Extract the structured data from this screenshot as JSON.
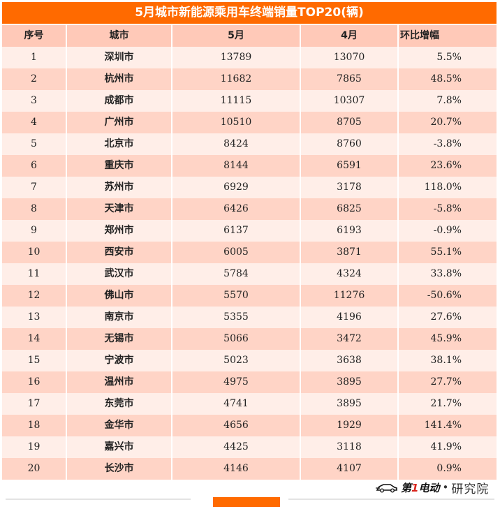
{
  "title": "5月城市新能源乘用车终端销量TOP20(辆)",
  "headers": {
    "rank": "序号",
    "city": "城市",
    "may": "5月",
    "april": "4月",
    "change": "环比增幅"
  },
  "rows": [
    {
      "rank": "1",
      "city": "深圳市",
      "may": "13789",
      "april": "13070",
      "change": "5.5%"
    },
    {
      "rank": "2",
      "city": "杭州市",
      "may": "11682",
      "april": "7865",
      "change": "48.5%"
    },
    {
      "rank": "3",
      "city": "成都市",
      "may": "11115",
      "april": "10307",
      "change": "7.8%"
    },
    {
      "rank": "4",
      "city": "广州市",
      "may": "10510",
      "april": "8705",
      "change": "20.7%"
    },
    {
      "rank": "5",
      "city": "北京市",
      "may": "8424",
      "april": "8760",
      "change": "-3.8%"
    },
    {
      "rank": "6",
      "city": "重庆市",
      "may": "8144",
      "april": "6591",
      "change": "23.6%"
    },
    {
      "rank": "7",
      "city": "苏州市",
      "may": "6929",
      "april": "3178",
      "change": "118.0%"
    },
    {
      "rank": "8",
      "city": "天津市",
      "may": "6426",
      "april": "6825",
      "change": "-5.8%"
    },
    {
      "rank": "9",
      "city": "郑州市",
      "may": "6137",
      "april": "6193",
      "change": "-0.9%"
    },
    {
      "rank": "10",
      "city": "西安市",
      "may": "6005",
      "april": "3871",
      "change": "55.1%"
    },
    {
      "rank": "11",
      "city": "武汉市",
      "may": "5784",
      "april": "4324",
      "change": "33.8%"
    },
    {
      "rank": "12",
      "city": "佛山市",
      "may": "5570",
      "april": "11276",
      "change": "-50.6%"
    },
    {
      "rank": "13",
      "city": "南京市",
      "may": "5355",
      "april": "4196",
      "change": "27.6%"
    },
    {
      "rank": "14",
      "city": "无锡市",
      "may": "5066",
      "april": "3472",
      "change": "45.9%"
    },
    {
      "rank": "15",
      "city": "宁波市",
      "may": "5023",
      "april": "3638",
      "change": "38.1%"
    },
    {
      "rank": "16",
      "city": "温州市",
      "may": "4975",
      "april": "3895",
      "change": "27.7%"
    },
    {
      "rank": "17",
      "city": "东莞市",
      "may": "4741",
      "april": "3895",
      "change": "21.7%"
    },
    {
      "rank": "18",
      "city": "金华市",
      "may": "4656",
      "april": "1929",
      "change": "141.4%"
    },
    {
      "rank": "19",
      "city": "嘉兴市",
      "may": "4425",
      "april": "3118",
      "change": "41.9%"
    },
    {
      "rank": "20",
      "city": "长沙市",
      "may": "4146",
      "april": "4107",
      "change": "0.9%"
    }
  ],
  "logo": {
    "brand_a": "第",
    "brand_num": "1",
    "brand_b": "电动",
    "dot": "•",
    "sub": "研究院",
    "icon": "car-icon"
  },
  "colors": {
    "accent": "#ff6a00",
    "row_light": "#ffeee8",
    "row_dark": "#ffd4c6",
    "header": "#ffc9b8"
  }
}
